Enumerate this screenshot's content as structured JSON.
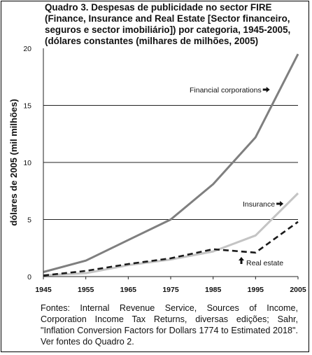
{
  "title": "Quadro 3. Despesas de publicidade no sector FIRE (Finance, Insurance and Real Estate [Sector financeiro, seguros e sector imobiliário]) por categoria, 1945-2005, (dólares constantes (milhares de milhões, 2005)",
  "source": "Fontes: Internal Revenue Service, Sources of Income, Corporation Income Tax Returns, diversas edições; Sahr, \"Inflation Conversion Factors for Dollars 1774 to Estimated 2018\". Ver fontes do Quadro 2.",
  "chart_data": {
    "type": "line",
    "ylabel": "dólares de 2005 (mil milhões)",
    "xlabel": "",
    "x": [
      1945,
      1955,
      1965,
      1975,
      1985,
      1995,
      2005
    ],
    "xticks": [
      "1945",
      "1955",
      "1965",
      "1975",
      "1985",
      "1995",
      "2005"
    ],
    "ylim": [
      0,
      20
    ],
    "yticks": [
      "0",
      "5",
      "10",
      "15",
      "20"
    ],
    "gridlines_y": [
      5,
      10,
      15
    ],
    "series": [
      {
        "name": "Financial corporations",
        "x": [
          1945,
          1955,
          1965,
          1975,
          1985,
          1995,
          2005
        ],
        "values": [
          0.4,
          1.4,
          3.2,
          5.0,
          8.1,
          12.2,
          19.5
        ],
        "color": "#7f7f7f",
        "style": "solid"
      },
      {
        "name": "Insurance",
        "x": [
          1945,
          1955,
          1965,
          1975,
          1985,
          1995,
          2005
        ],
        "values": [
          0.1,
          0.3,
          1.0,
          1.5,
          2.2,
          3.6,
          7.3
        ],
        "color": "#c4c4c4",
        "style": "solid"
      },
      {
        "name": "Real estate",
        "x": [
          1945,
          1955,
          1965,
          1975,
          1985,
          1995,
          2005
        ],
        "values": [
          0.1,
          0.5,
          1.1,
          1.6,
          2.4,
          2.1,
          4.8
        ],
        "color": "#1a1a1a",
        "style": "dashed"
      }
    ]
  }
}
